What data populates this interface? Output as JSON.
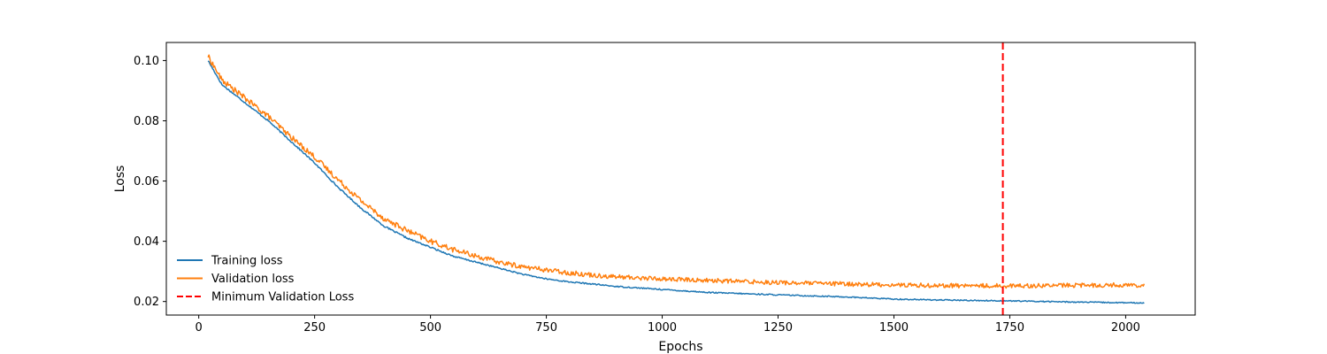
{
  "chart_data": {
    "type": "line",
    "title": "",
    "xlabel": "Epochs",
    "ylabel": "Loss",
    "xlim": [
      -70,
      2150
    ],
    "ylim": [
      0.0155,
      0.106
    ],
    "xticks": [
      0,
      250,
      500,
      750,
      1000,
      1250,
      1500,
      1750,
      2000
    ],
    "xtick_labels": [
      "0",
      "250",
      "500",
      "750",
      "1000",
      "1250",
      "1500",
      "1750",
      "2000"
    ],
    "yticks": [
      0.02,
      0.04,
      0.06,
      0.08,
      0.1
    ],
    "ytick_labels": [
      "0.02",
      "0.04",
      "0.06",
      "0.08",
      "0.10"
    ],
    "grid": false,
    "legend_position": "lower-left",
    "legend_frame": false,
    "x_range": [
      20,
      2040
    ],
    "series": [
      {
        "name": "Training loss",
        "color": "#1f77b4",
        "points": [
          [
            20,
            0.1
          ],
          [
            50,
            0.092
          ],
          [
            100,
            0.086
          ],
          [
            150,
            0.08
          ],
          [
            200,
            0.073
          ],
          [
            250,
            0.066
          ],
          [
            300,
            0.058
          ],
          [
            350,
            0.051
          ],
          [
            400,
            0.045
          ],
          [
            450,
            0.041
          ],
          [
            500,
            0.038
          ],
          [
            550,
            0.035
          ],
          [
            600,
            0.033
          ],
          [
            650,
            0.031
          ],
          [
            700,
            0.029
          ],
          [
            750,
            0.0275
          ],
          [
            800,
            0.0265
          ],
          [
            850,
            0.0258
          ],
          [
            900,
            0.025
          ],
          [
            1000,
            0.024
          ],
          [
            1100,
            0.023
          ],
          [
            1250,
            0.0222
          ],
          [
            1400,
            0.0215
          ],
          [
            1500,
            0.0208
          ],
          [
            1600,
            0.0205
          ],
          [
            1750,
            0.0202
          ],
          [
            1900,
            0.0198
          ],
          [
            2040,
            0.0195
          ]
        ],
        "noise": 0.00025
      },
      {
        "name": "Validation loss",
        "color": "#ff7f0e",
        "points": [
          [
            20,
            0.1015
          ],
          [
            50,
            0.0935
          ],
          [
            100,
            0.0875
          ],
          [
            150,
            0.0815
          ],
          [
            200,
            0.0745
          ],
          [
            250,
            0.068
          ],
          [
            300,
            0.0605
          ],
          [
            350,
            0.0535
          ],
          [
            400,
            0.0475
          ],
          [
            450,
            0.0435
          ],
          [
            500,
            0.04
          ],
          [
            550,
            0.0372
          ],
          [
            600,
            0.035
          ],
          [
            650,
            0.033
          ],
          [
            700,
            0.0315
          ],
          [
            750,
            0.0305
          ],
          [
            800,
            0.0295
          ],
          [
            850,
            0.0288
          ],
          [
            900,
            0.0282
          ],
          [
            1000,
            0.0275
          ],
          [
            1100,
            0.027
          ],
          [
            1250,
            0.0263
          ],
          [
            1400,
            0.0258
          ],
          [
            1500,
            0.0255
          ],
          [
            1600,
            0.0253
          ],
          [
            1750,
            0.0252
          ],
          [
            1900,
            0.0254
          ],
          [
            2040,
            0.0255
          ]
        ],
        "noise": 0.0009
      },
      {
        "name": "Minimum Validation Loss",
        "color": "#ff0000",
        "type": "vline",
        "x": 1735,
        "dash": "dashed"
      }
    ]
  }
}
